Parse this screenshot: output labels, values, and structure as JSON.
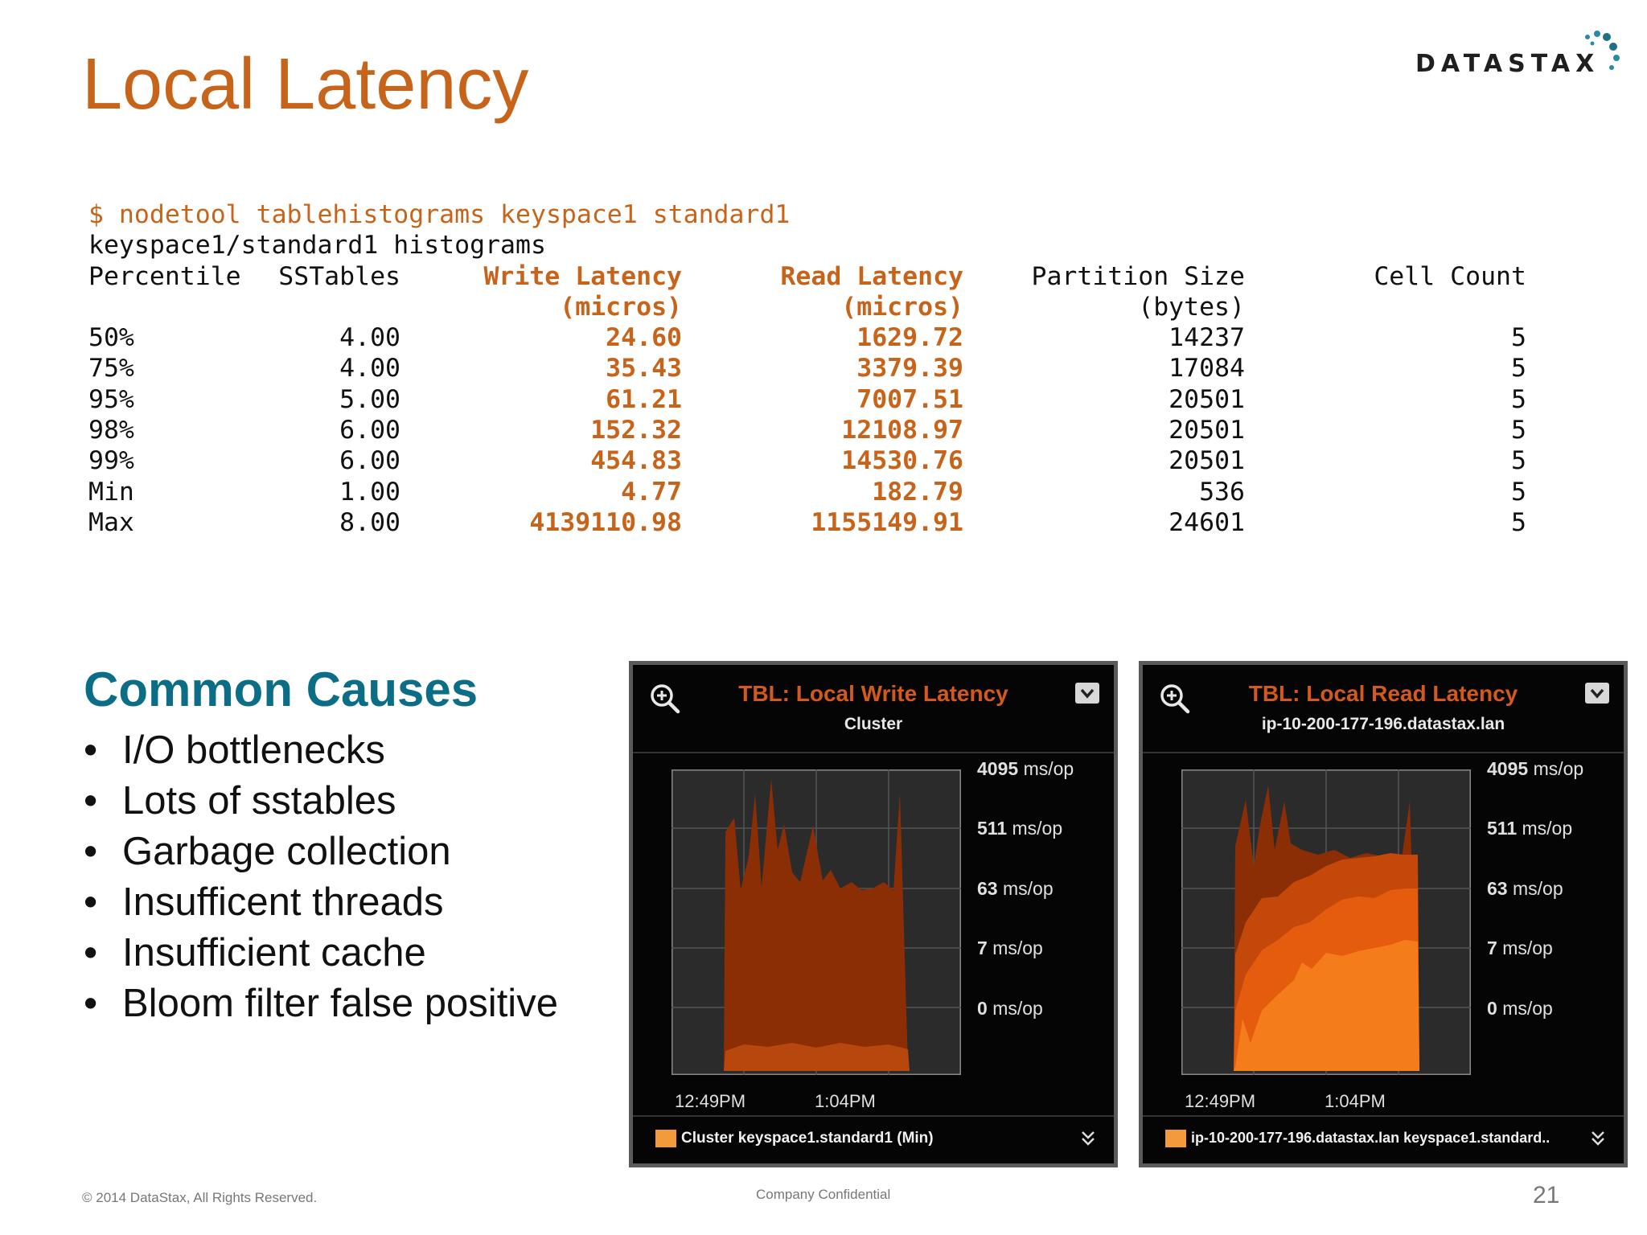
{
  "slide": {
    "title": "Local Latency",
    "logo": "DATASTAX",
    "footer_copyright": "© 2014 DataStax, All Rights Reserved.",
    "footer_confidential": "Company Confidential",
    "page_number": "21",
    "brand_color": "#c8631a",
    "accent_color": "#0c6e86"
  },
  "terminal": {
    "command": "$ nodetool tablehistograms keyspace1 standard1",
    "subtitle": "keyspace1/standard1 histograms",
    "headers": {
      "percentile": "Percentile",
      "sstables": "SSTables",
      "write_latency": "Write Latency",
      "write_unit": "(micros)",
      "read_latency": "Read Latency",
      "read_unit": "(micros)",
      "partition_size": "Partition Size",
      "partition_unit": "(bytes)",
      "cell_count": "Cell Count"
    },
    "rows": [
      {
        "percentile": "50%",
        "sstables": "4.00",
        "write": "24.60",
        "read": "1629.72",
        "partition": "14237",
        "cells": "5"
      },
      {
        "percentile": "75%",
        "sstables": "4.00",
        "write": "35.43",
        "read": "3379.39",
        "partition": "17084",
        "cells": "5"
      },
      {
        "percentile": "95%",
        "sstables": "5.00",
        "write": "61.21",
        "read": "7007.51",
        "partition": "20501",
        "cells": "5"
      },
      {
        "percentile": "98%",
        "sstables": "6.00",
        "write": "152.32",
        "read": "12108.97",
        "partition": "20501",
        "cells": "5"
      },
      {
        "percentile": "99%",
        "sstables": "6.00",
        "write": "454.83",
        "read": "14530.76",
        "partition": "20501",
        "cells": "5"
      },
      {
        "percentile": "Min",
        "sstables": "1.00",
        "write": "4.77",
        "read": "182.79",
        "partition": "536",
        "cells": "5"
      },
      {
        "percentile": "Max",
        "sstables": "8.00",
        "write": "4139110.98",
        "read": "1155149.91",
        "partition": "24601",
        "cells": "5"
      }
    ]
  },
  "causes": {
    "title": "Common Causes",
    "items": [
      "I/O bottlenecks",
      "Lots of sstables",
      "Garbage collection",
      "Insufficent threads",
      "Insufficient cache",
      "Bloom filter false positive"
    ]
  },
  "panels": {
    "write": {
      "title": "TBL: Local Write Latency",
      "subtitle": "Cluster",
      "yticks": [
        [
          "4095",
          "ms/op"
        ],
        [
          "511",
          "ms/op"
        ],
        [
          "63",
          "ms/op"
        ],
        [
          "7",
          "ms/op"
        ],
        [
          "0",
          "ms/op"
        ]
      ],
      "xticks": [
        "12:49PM",
        "1:04PM"
      ],
      "legend": "Cluster keyspace1.standard1 (Min)",
      "icons": [
        "zoom-in-icon",
        "dropdown-icon",
        "double-chevron-down-icon"
      ]
    },
    "read": {
      "title": "TBL: Local Read Latency",
      "subtitle": "ip-10-200-177-196.datastax.lan",
      "yticks": [
        [
          "4095",
          "ms/op"
        ],
        [
          "511",
          "ms/op"
        ],
        [
          "63",
          "ms/op"
        ],
        [
          "7",
          "ms/op"
        ],
        [
          "0",
          "ms/op"
        ]
      ],
      "xticks": [
        "12:49PM",
        "1:04PM"
      ],
      "legend": "ip-10-200-177-196.datastax.lan keyspace1.standard..",
      "icons": [
        "zoom-in-icon",
        "dropdown-icon",
        "double-chevron-down-icon"
      ]
    }
  }
}
